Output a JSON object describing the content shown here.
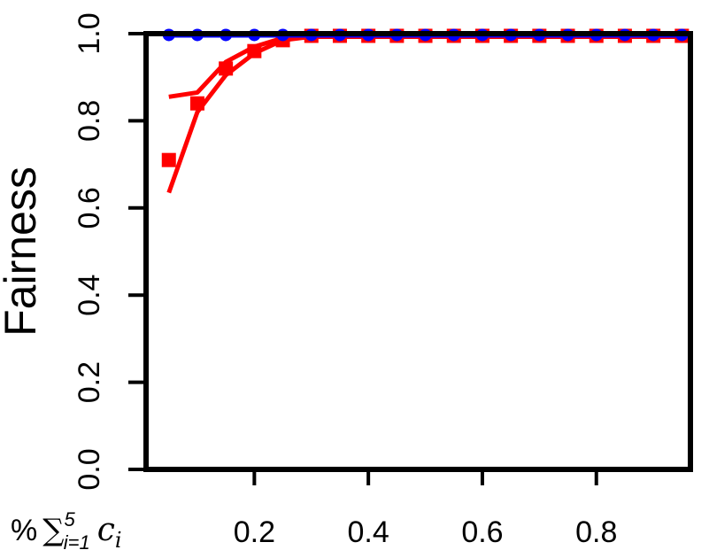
{
  "chart_data": {
    "type": "line",
    "ylabel": "Fairness",
    "xlabel": {
      "prefix": "%",
      "symbol": "∑",
      "sup": "5",
      "sub": "i=1",
      "var": "c",
      "var_sub": "i"
    },
    "x": [
      0.05,
      0.1,
      0.15,
      0.2,
      0.25,
      0.3,
      0.35,
      0.4,
      0.45,
      0.5,
      0.55,
      0.6,
      0.65,
      0.7,
      0.75,
      0.8,
      0.85,
      0.9,
      0.95
    ],
    "series": [
      {
        "color": "#ff0000",
        "marker": "square",
        "line": false,
        "values": [
          0.71,
          0.84,
          0.92,
          0.96,
          0.985,
          0.995,
          0.995,
          0.995,
          0.995,
          0.995,
          0.995,
          0.995,
          0.995,
          0.995,
          0.995,
          0.995,
          0.995,
          0.995,
          0.995
        ]
      },
      {
        "color": "#ff0000",
        "marker": null,
        "line": true,
        "values": [
          0.855,
          0.865,
          0.935,
          0.97,
          0.99,
          0.997,
          0.997,
          0.997,
          0.997,
          0.997,
          0.997,
          0.997,
          0.997,
          0.997,
          0.997,
          0.997,
          0.997,
          0.997,
          0.997
        ]
      },
      {
        "color": "#ff0000",
        "marker": null,
        "line": true,
        "values": [
          0.635,
          0.82,
          0.905,
          0.955,
          0.985,
          0.993,
          0.993,
          0.993,
          0.993,
          0.993,
          0.993,
          0.993,
          0.993,
          0.993,
          0.993,
          0.993,
          0.993,
          0.993,
          0.993
        ]
      },
      {
        "color": "#0000ff",
        "marker": "circle",
        "line": true,
        "values": [
          0.997,
          0.997,
          0.997,
          0.997,
          0.997,
          0.997,
          0.997,
          0.997,
          0.997,
          0.997,
          0.997,
          0.997,
          0.997,
          0.997,
          0.997,
          0.997,
          0.997,
          0.997,
          0.997
        ]
      }
    ],
    "xlim": [
      0.01,
      0.965
    ],
    "xticks": [
      0.2,
      0.4,
      0.6,
      0.8
    ],
    "ylim": [
      0,
      1
    ],
    "yticks": [
      {
        "value": 0,
        "label": "0.0"
      },
      0.2,
      0.4,
      0.6,
      0.8,
      {
        "value": 1,
        "label": "1.0"
      }
    ]
  }
}
